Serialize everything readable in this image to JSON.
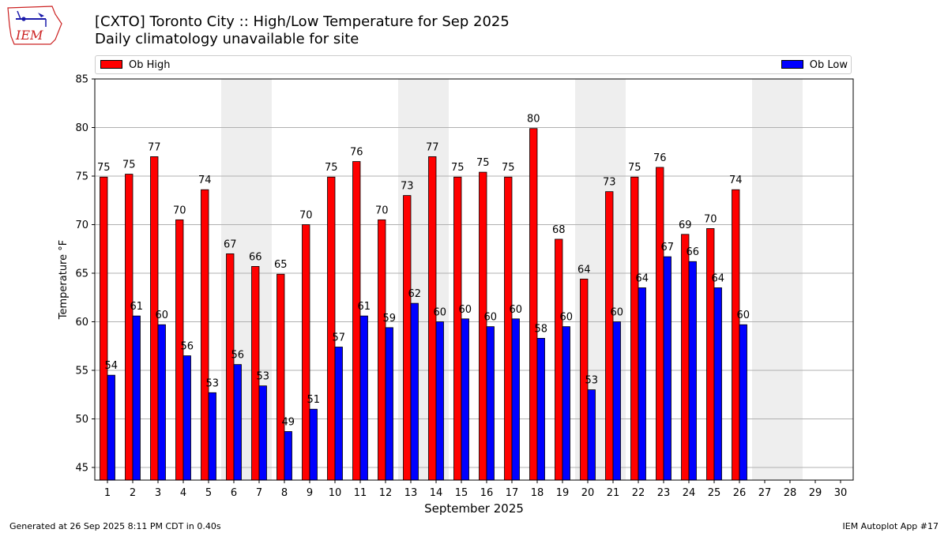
{
  "header": {
    "logo_text": "IEM",
    "title": "[CXTO] Toronto City :: High/Low Temperature for Sep 2025",
    "subtitle": "Daily climatology unavailable for site"
  },
  "footer": {
    "left": "Generated at 26 Sep 2025 8:11 PM CDT in 0.40s",
    "right": "IEM Autoplot App #17"
  },
  "colors": {
    "high": "#ff0000",
    "low": "#0000ff",
    "weekend_band": "#eeeeee",
    "grid": "#b0b0b0"
  },
  "chart_data": {
    "type": "bar",
    "xlabel": "September 2025",
    "ylabel": "Temperature °F",
    "ylim": [
      43.7,
      85
    ],
    "yticks": [
      45,
      50,
      55,
      60,
      65,
      70,
      75,
      80,
      85
    ],
    "grid": "horizontal",
    "legend": "top, spanning plot width",
    "categories": [
      "1",
      "2",
      "3",
      "4",
      "5",
      "6",
      "7",
      "8",
      "9",
      "10",
      "11",
      "12",
      "13",
      "14",
      "15",
      "16",
      "17",
      "18",
      "19",
      "20",
      "21",
      "22",
      "23",
      "24",
      "25",
      "26",
      "27",
      "28",
      "29",
      "30"
    ],
    "weekend_days": [
      6,
      7,
      13,
      14,
      20,
      21,
      27,
      28
    ],
    "series": [
      {
        "name": "Ob High",
        "color": "#ff0000",
        "values": [
          74.9,
          75.2,
          77.0,
          70.5,
          73.6,
          67.0,
          65.7,
          64.9,
          70.0,
          74.9,
          76.5,
          70.5,
          73.0,
          77.0,
          74.9,
          75.4,
          74.9,
          79.9,
          68.5,
          64.4,
          73.4,
          74.9,
          75.9,
          69.0,
          69.6,
          73.6,
          null,
          null,
          null,
          null
        ],
        "labels": [
          "75",
          "75",
          "77",
          "70",
          "74",
          "67",
          "66",
          "65",
          "70",
          "75",
          "76",
          "70",
          "73",
          "77",
          "75",
          "75",
          "75",
          "80",
          "68",
          "64",
          "73",
          "75",
          "76",
          "69",
          "70",
          "74",
          "",
          "",
          "",
          ""
        ]
      },
      {
        "name": "Ob Low",
        "color": "#0000ff",
        "values": [
          54.5,
          60.6,
          59.7,
          56.5,
          52.7,
          55.6,
          53.4,
          48.7,
          51.0,
          57.4,
          60.6,
          59.4,
          61.9,
          60.0,
          60.3,
          59.5,
          60.3,
          58.3,
          59.5,
          53.0,
          60.0,
          63.5,
          66.7,
          66.2,
          63.5,
          59.7,
          null,
          null,
          null,
          null
        ],
        "labels": [
          "54",
          "61",
          "60",
          "56",
          "53",
          "56",
          "53",
          "49",
          "51",
          "57",
          "61",
          "59",
          "62",
          "60",
          "60",
          "60",
          "60",
          "58",
          "60",
          "53",
          "60",
          "64",
          "67",
          "66",
          "64",
          "60",
          "",
          "",
          "",
          ""
        ]
      }
    ]
  }
}
